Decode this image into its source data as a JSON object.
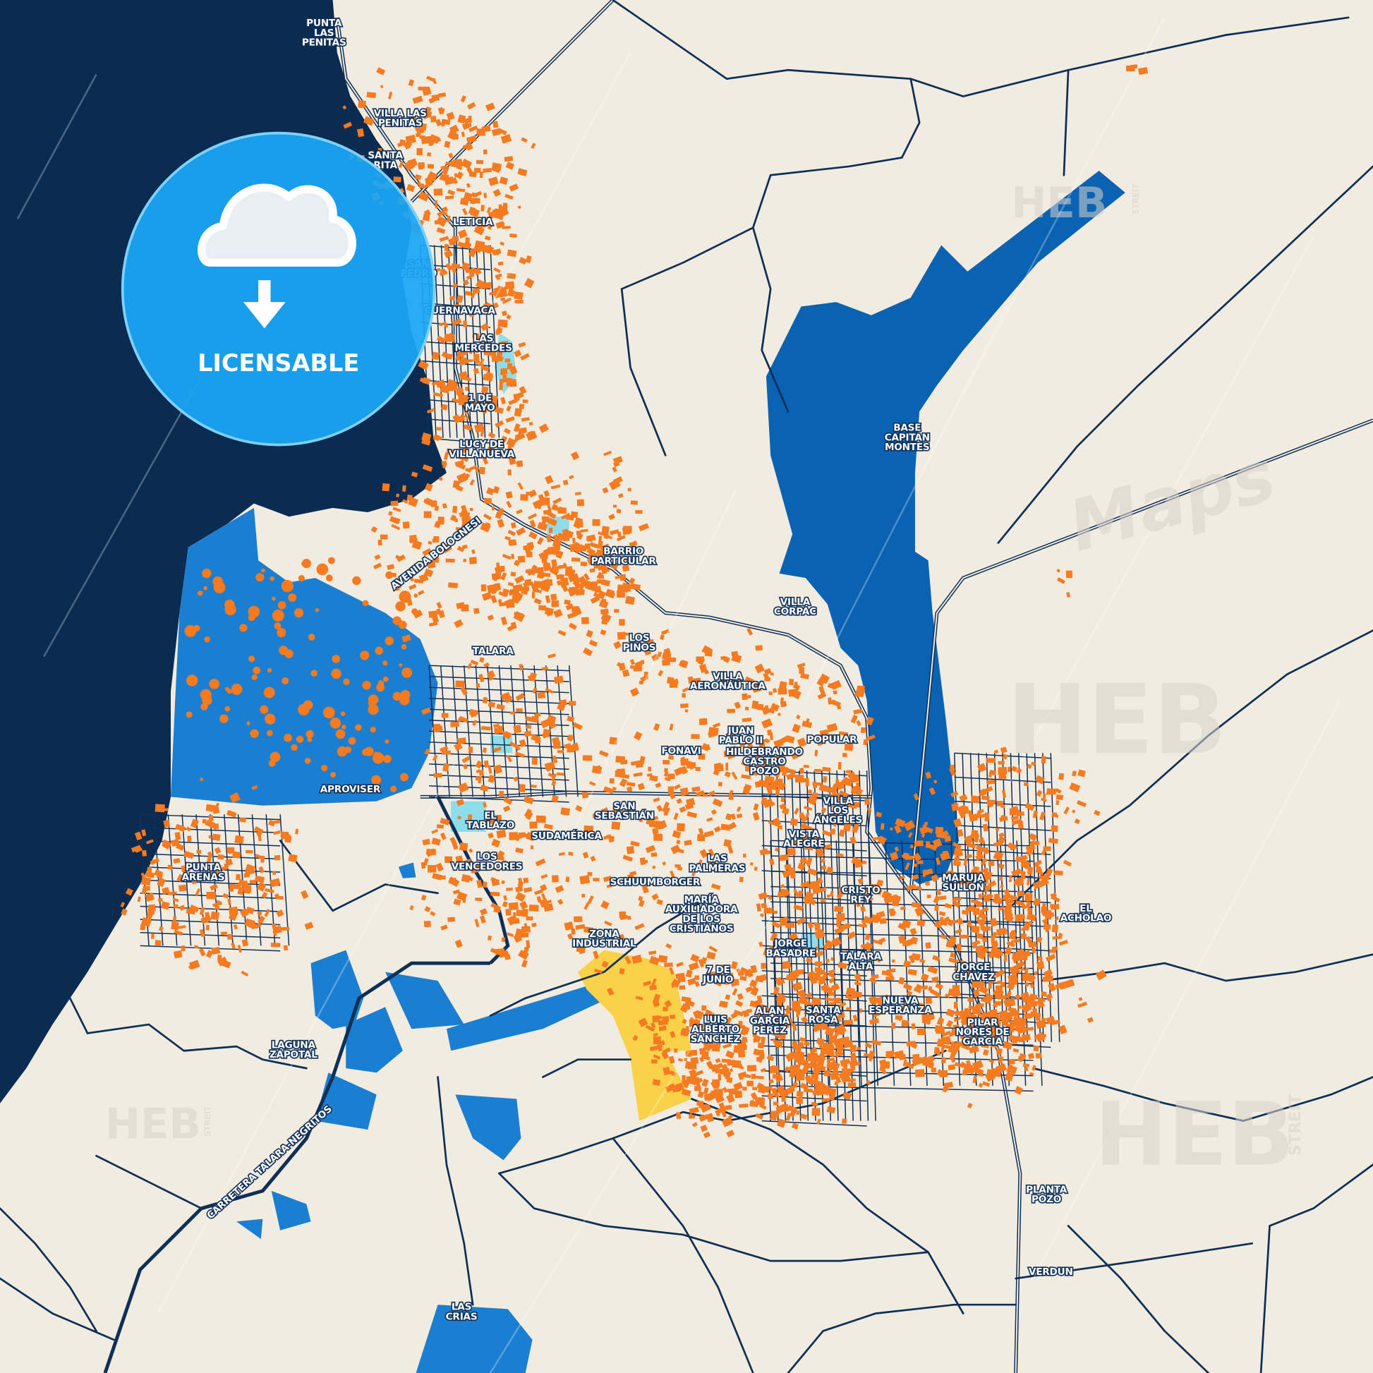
{
  "map": {
    "colors": {
      "land": "#f1ebe0",
      "ocean": "#0b2c52",
      "industrial_blue": "#1a7fd0",
      "airport_blue": "#0a62b3",
      "buildings": "#f57a20",
      "roads": "#0e2f57",
      "parks": "#8fdde8",
      "yellow_zone": "#f9d24a"
    },
    "labels": [
      {
        "lines": [
          "PUNTA",
          "LAS",
          "PENITAS"
        ]
      },
      {
        "lines": [
          "VILLA LAS",
          "PENITAS"
        ]
      },
      {
        "lines": [
          "SANTA",
          "RITA"
        ]
      },
      {
        "lines": [
          "LETICIA"
        ]
      },
      {
        "lines": [
          "SAN",
          "PEDRO"
        ]
      },
      {
        "lines": [
          "CUERNAVACA"
        ]
      },
      {
        "lines": [
          "LAS",
          "MERCEDES"
        ]
      },
      {
        "lines": [
          "1 DE",
          "MAYO"
        ]
      },
      {
        "lines": [
          "LUCY DE",
          "VILLANUEVA"
        ]
      },
      {
        "lines": [
          "AVENIDA BOLOGNESI"
        ]
      },
      {
        "lines": [
          "BARRIO",
          "PARTICULAR"
        ]
      },
      {
        "lines": [
          "LOS",
          "PINOS"
        ]
      },
      {
        "lines": [
          "TALARA"
        ]
      },
      {
        "lines": [
          "VILLA",
          "CORPAC"
        ]
      },
      {
        "lines": [
          "VILLA",
          "AERONÁUTICA"
        ]
      },
      {
        "lines": [
          "JUAN",
          "PABLO II"
        ]
      },
      {
        "lines": [
          "FONAVI"
        ]
      },
      {
        "lines": [
          "HILDEBRANDO",
          "CASTRO",
          "POZO"
        ]
      },
      {
        "lines": [
          "POPULAR"
        ]
      },
      {
        "lines": [
          "APROVISER"
        ]
      },
      {
        "lines": [
          "BASE",
          "CAPITAN",
          "MONTES"
        ]
      },
      {
        "lines": [
          "SAN",
          "SEBASTIÁN"
        ]
      },
      {
        "lines": [
          "EL",
          "TABLAZO"
        ]
      },
      {
        "lines": [
          "SUDAMÉRICA"
        ]
      },
      {
        "lines": [
          "VILLA",
          "LOS",
          "ÁNGELES"
        ]
      },
      {
        "lines": [
          "VISTA",
          "ALEGRE"
        ]
      },
      {
        "lines": [
          "LOS",
          "VENCEDORES"
        ]
      },
      {
        "lines": [
          "LAS",
          "PALMERAS"
        ]
      },
      {
        "lines": [
          "PUNTA",
          "ARENAS"
        ]
      },
      {
        "lines": [
          "SCHUUMBORGER"
        ]
      },
      {
        "lines": [
          "CRISTO",
          "REY"
        ]
      },
      {
        "lines": [
          "MARUJA",
          "SULLON"
        ]
      },
      {
        "lines": [
          "MARÍA",
          "AUXILIADORA",
          "DE LOS",
          "CRISTIANOS"
        ]
      },
      {
        "lines": [
          "EL",
          "ACHOLAO"
        ]
      },
      {
        "lines": [
          "ZONA",
          "INDUSTRIAL"
        ]
      },
      {
        "lines": [
          "JORGE",
          "BASADRE"
        ]
      },
      {
        "lines": [
          "TALARA",
          "ALTA"
        ]
      },
      {
        "lines": [
          "7 DE",
          "JUNIO"
        ]
      },
      {
        "lines": [
          "JORGE",
          "CHAVEZ"
        ]
      },
      {
        "lines": [
          "NUEVA",
          "ESPERANZA"
        ]
      },
      {
        "lines": [
          "SANTA",
          "ROSA"
        ]
      },
      {
        "lines": [
          "ALAN",
          "GARCIA",
          "PEREZ"
        ]
      },
      {
        "lines": [
          "LUIS",
          "ALBERTO",
          "SANCHEZ"
        ]
      },
      {
        "lines": [
          "PILAR",
          "NORES DE",
          "GARCIA"
        ]
      },
      {
        "lines": [
          "LAGUNA",
          "ZAPOTAL"
        ]
      },
      {
        "lines": [
          "CARRETERA TALARA-NEGRITOS"
        ]
      },
      {
        "lines": [
          "PLANTA",
          "POZO"
        ]
      },
      {
        "lines": [
          "VERDUN"
        ]
      },
      {
        "lines": [
          "LAS",
          "CRIAS"
        ]
      }
    ]
  },
  "badge": {
    "label": "LICENSABLE",
    "icon": "cloud-download-icon",
    "color": "#1aa7f5"
  },
  "watermarks": {
    "brand": "HEB",
    "sub": "STREIT",
    "script": "Maps"
  }
}
